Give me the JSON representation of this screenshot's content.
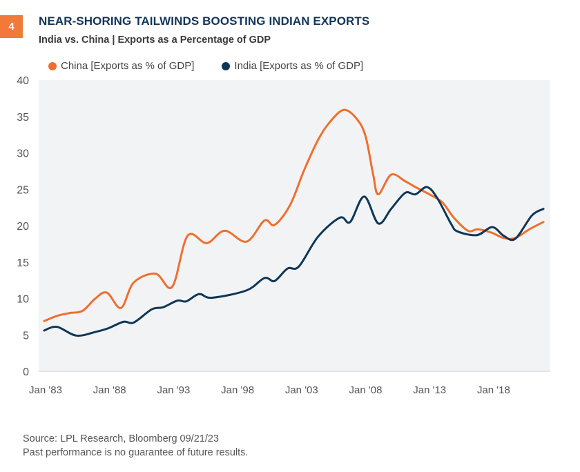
{
  "header": {
    "badge": "4",
    "title": "NEAR-SHORING TAILWINDS BOOSTING INDIAN EXPORTS",
    "subtitle": "India vs. China | Exports as a Percentage of GDP"
  },
  "colors": {
    "china": "#ee6f2d",
    "india": "#0f3657",
    "plot_bg": "#f2f3f5",
    "badge": "#f07a3a",
    "title": "#12345a"
  },
  "chart_data": {
    "type": "line",
    "title": "India vs. China | Exports as a Percentage of GDP",
    "xlabel": "",
    "ylabel": "",
    "ylim": [
      0,
      40
    ],
    "xlim": [
      1983,
      2022.5
    ],
    "grid": false,
    "legend_position": "top-left",
    "yticks": [
      "0",
      "5",
      "10",
      "15",
      "20",
      "25",
      "30",
      "35",
      "40"
    ],
    "xticks": [
      {
        "label": "Jan '83",
        "year": 1983
      },
      {
        "label": "Jan '88",
        "year": 1988
      },
      {
        "label": "Jan '93",
        "year": 1993
      },
      {
        "label": "Jan '98",
        "year": 1998
      },
      {
        "label": "Jan '03",
        "year": 2003
      },
      {
        "label": "Jan '08",
        "year": 2008
      },
      {
        "label": "Jan '13",
        "year": 2013
      },
      {
        "label": "Jan '18",
        "year": 2018
      }
    ],
    "series": [
      {
        "name": "China [Exports as % of GDP]",
        "x": [
          1983,
          1984,
          1985,
          1986,
          1987,
          1987.9,
          1989,
          1990,
          1991.7,
          1993,
          1994.2,
          1995.7,
          1997.1,
          1998.8,
          2000.2,
          2001,
          2002.2,
          2003.3,
          2004.4,
          2005.3,
          2006.4,
          2007.4,
          2008.1,
          2008.7,
          2009.1,
          2010.1,
          2011.2,
          2012,
          2013.2,
          2014.1,
          2015,
          2016.1,
          2016.9,
          2018,
          2018.9,
          2019.8,
          2020.9,
          2022
        ],
        "values": [
          6.9,
          7.6,
          8.0,
          8.3,
          10.0,
          10.8,
          8.7,
          12.2,
          13.4,
          11.6,
          18.6,
          17.6,
          19.3,
          17.8,
          20.7,
          20.1,
          22.8,
          27.6,
          31.8,
          34.2,
          35.9,
          34.7,
          32.3,
          27.0,
          24.3,
          27.0,
          26.1,
          25.3,
          24.2,
          23.2,
          21.1,
          19.3,
          19.5,
          19.0,
          18.3,
          18.3,
          19.5,
          20.5
        ]
      },
      {
        "name": "India [Exports as % of GDP]",
        "x": [
          1983,
          1984,
          1985.5,
          1987,
          1988,
          1989.2,
          1990,
          1991.4,
          1992.3,
          1993.4,
          1994.1,
          1995.1,
          1996.1,
          1998.8,
          2000.2,
          2001,
          2002,
          2002.9,
          2004.4,
          2006.1,
          2006.9,
          2008,
          2009.1,
          2010.1,
          2011.2,
          2012,
          2012.9,
          2013.7,
          2014.8,
          2015.3,
          2016.8,
          2018,
          2018.9,
          2019.8,
          2021.1,
          2022
        ],
        "values": [
          5.6,
          6.1,
          4.9,
          5.4,
          5.9,
          6.8,
          6.7,
          8.5,
          8.8,
          9.7,
          9.6,
          10.6,
          10.1,
          11.1,
          12.8,
          12.4,
          14.1,
          14.4,
          18.5,
          21.1,
          20.5,
          24.0,
          20.3,
          22.3,
          24.5,
          24.3,
          25.3,
          23.8,
          20.2,
          19.2,
          18.7,
          19.8,
          18.6,
          18.2,
          21.4,
          22.3
        ]
      }
    ]
  },
  "footnote": {
    "source": "Source: LPL Research, Bloomberg  09/21/23",
    "disclaimer": "Past performance is no guarantee of future results."
  }
}
